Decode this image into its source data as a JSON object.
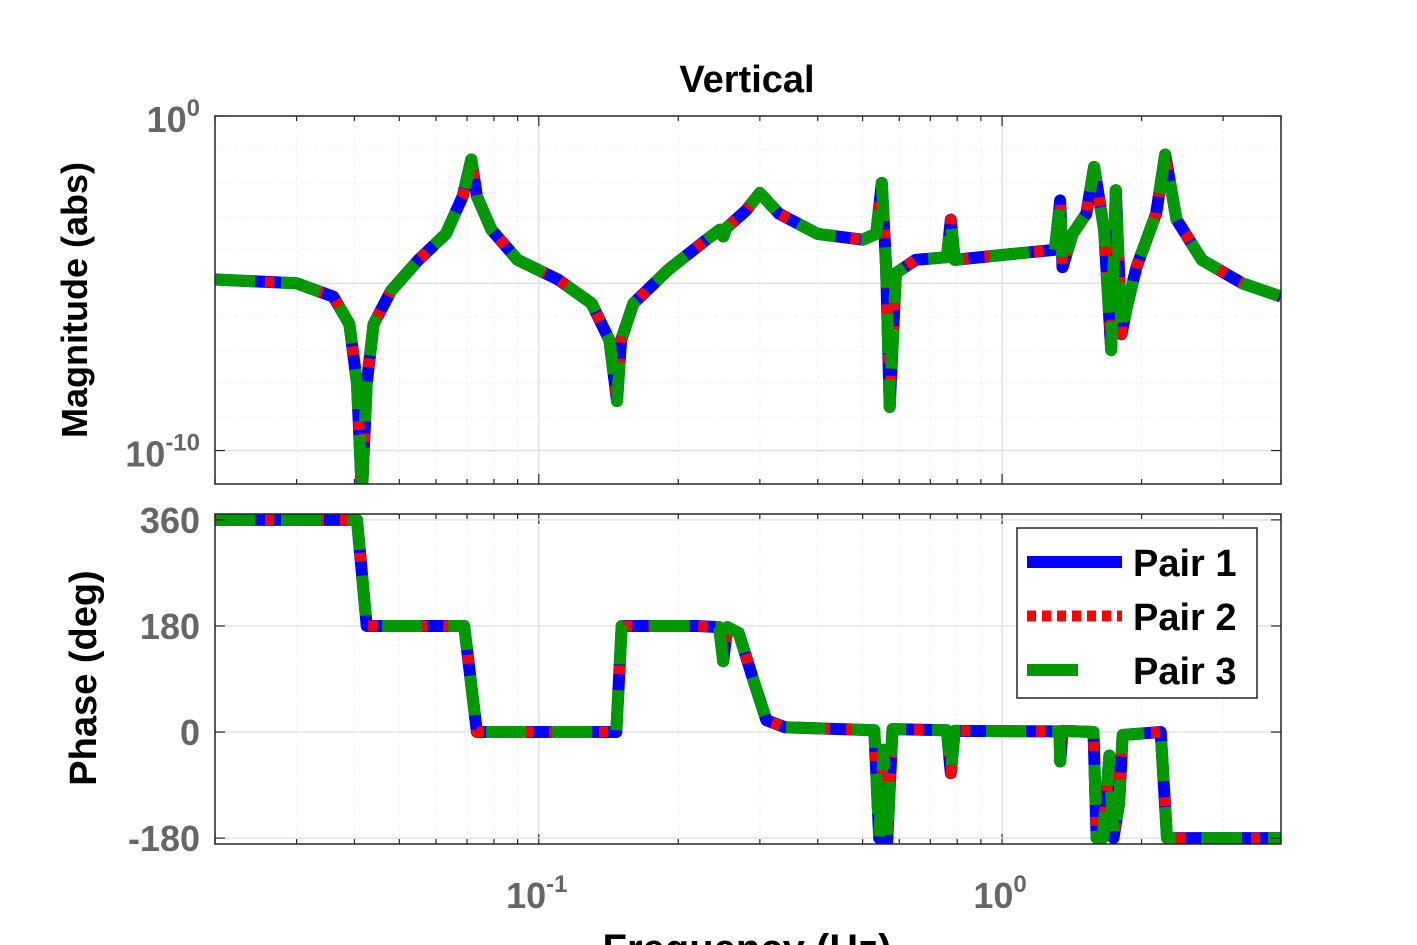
{
  "chart_data": {
    "type": "line",
    "title": "Vertical",
    "xlabel": "Frequency  (Hz)",
    "xscale": "log",
    "xlim": [
      0.02,
      4
    ],
    "x_ticks": [
      {
        "value": 0.1,
        "base": "10",
        "exp": "-1"
      },
      {
        "value": 1,
        "base": "10",
        "exp": "0"
      }
    ],
    "grid": true,
    "legend_position": "top-right",
    "series": [
      {
        "name": "Pair 1",
        "color": "#0000ff",
        "style": "solid"
      },
      {
        "name": "Pair 2",
        "color": "#ff0000",
        "style": "dotted"
      },
      {
        "name": "Pair 3",
        "color": "#009900",
        "style": "dashed"
      }
    ],
    "magnitude": {
      "ylabel": "Magnitude (abs)",
      "yscale": "log",
      "ylim": [
        1e-11,
        1
      ],
      "y_ticks": [
        {
          "value": 1,
          "base": "10",
          "exp": "0"
        },
        {
          "value": 1e-10,
          "base": "10",
          "exp": "-10"
        }
      ],
      "points": [
        [
          0.02,
          1.3e-05
        ],
        [
          0.03,
          1e-05
        ],
        [
          0.036,
          4e-06
        ],
        [
          0.039,
          6e-07
        ],
        [
          0.0405,
          1e-08
        ],
        [
          0.0415,
          5e-12
        ],
        [
          0.0425,
          1e-08
        ],
        [
          0.044,
          6e-07
        ],
        [
          0.048,
          6e-06
        ],
        [
          0.055,
          5e-05
        ],
        [
          0.063,
          0.0003
        ],
        [
          0.0685,
          0.004
        ],
        [
          0.0715,
          0.05
        ],
        [
          0.0735,
          0.004
        ],
        [
          0.079,
          0.0004
        ],
        [
          0.09,
          5e-05
        ],
        [
          0.11,
          1.3e-05
        ],
        [
          0.13,
          2.5e-06
        ],
        [
          0.142,
          2e-07
        ],
        [
          0.1475,
          3e-09
        ],
        [
          0.1505,
          2e-07
        ],
        [
          0.16,
          2.5e-06
        ],
        [
          0.19,
          2.5e-05
        ],
        [
          0.23,
          0.0002
        ],
        [
          0.246,
          0.0004
        ],
        [
          0.25,
          0.00025
        ],
        [
          0.254,
          0.00045
        ],
        [
          0.28,
          0.0015
        ],
        [
          0.3,
          0.005
        ],
        [
          0.33,
          0.0012
        ],
        [
          0.4,
          0.0003
        ],
        [
          0.5,
          0.0002
        ],
        [
          0.535,
          0.0003
        ],
        [
          0.55,
          0.01
        ],
        [
          0.562,
          3e-05
        ],
        [
          0.572,
          2e-09
        ],
        [
          0.59,
          2e-05
        ],
        [
          0.65,
          5e-05
        ],
        [
          0.76,
          6e-05
        ],
        [
          0.775,
          0.0008
        ],
        [
          0.79,
          5e-05
        ],
        [
          1.0,
          7e-05
        ],
        [
          1.3,
          0.0001
        ],
        [
          1.335,
          0.003
        ],
        [
          1.35,
          3e-05
        ],
        [
          1.42,
          0.0003
        ],
        [
          1.52,
          0.0012
        ],
        [
          1.58,
          0.03
        ],
        [
          1.66,
          0.0004
        ],
        [
          1.72,
          1e-07
        ],
        [
          1.76,
          0.006
        ],
        [
          1.81,
          3e-07
        ],
        [
          1.86,
          2e-06
        ],
        [
          1.95,
          3e-05
        ],
        [
          2.15,
          0.0012
        ],
        [
          2.25,
          0.07
        ],
        [
          2.38,
          0.0008
        ],
        [
          2.7,
          5e-05
        ],
        [
          3.3,
          1e-05
        ],
        [
          4.0,
          4e-06
        ]
      ]
    },
    "phase": {
      "ylabel": "Phase (deg)",
      "ylim": [
        -190,
        370
      ],
      "y_ticks": [
        360,
        180,
        0,
        -180
      ],
      "points": [
        [
          0.02,
          360
        ],
        [
          0.0405,
          360
        ],
        [
          0.0425,
          180
        ],
        [
          0.069,
          180
        ],
        [
          0.0735,
          0
        ],
        [
          0.147,
          0
        ],
        [
          0.151,
          180
        ],
        [
          0.22,
          180
        ],
        [
          0.245,
          178
        ],
        [
          0.25,
          120
        ],
        [
          0.255,
          178
        ],
        [
          0.27,
          168
        ],
        [
          0.29,
          90
        ],
        [
          0.31,
          20
        ],
        [
          0.34,
          8
        ],
        [
          0.53,
          3
        ],
        [
          0.543,
          -180
        ],
        [
          0.555,
          -30
        ],
        [
          0.565,
          -185
        ],
        [
          0.58,
          5
        ],
        [
          0.76,
          3
        ],
        [
          0.775,
          -70
        ],
        [
          0.79,
          2
        ],
        [
          1.33,
          1
        ],
        [
          1.335,
          -50
        ],
        [
          1.35,
          2
        ],
        [
          1.575,
          0
        ],
        [
          1.6,
          -180
        ],
        [
          1.65,
          -180
        ],
        [
          1.705,
          -40
        ],
        [
          1.74,
          -180
        ],
        [
          1.79,
          -120
        ],
        [
          1.82,
          -5
        ],
        [
          2.2,
          0
        ],
        [
          2.27,
          -180
        ],
        [
          4.0,
          -180
        ]
      ]
    }
  }
}
